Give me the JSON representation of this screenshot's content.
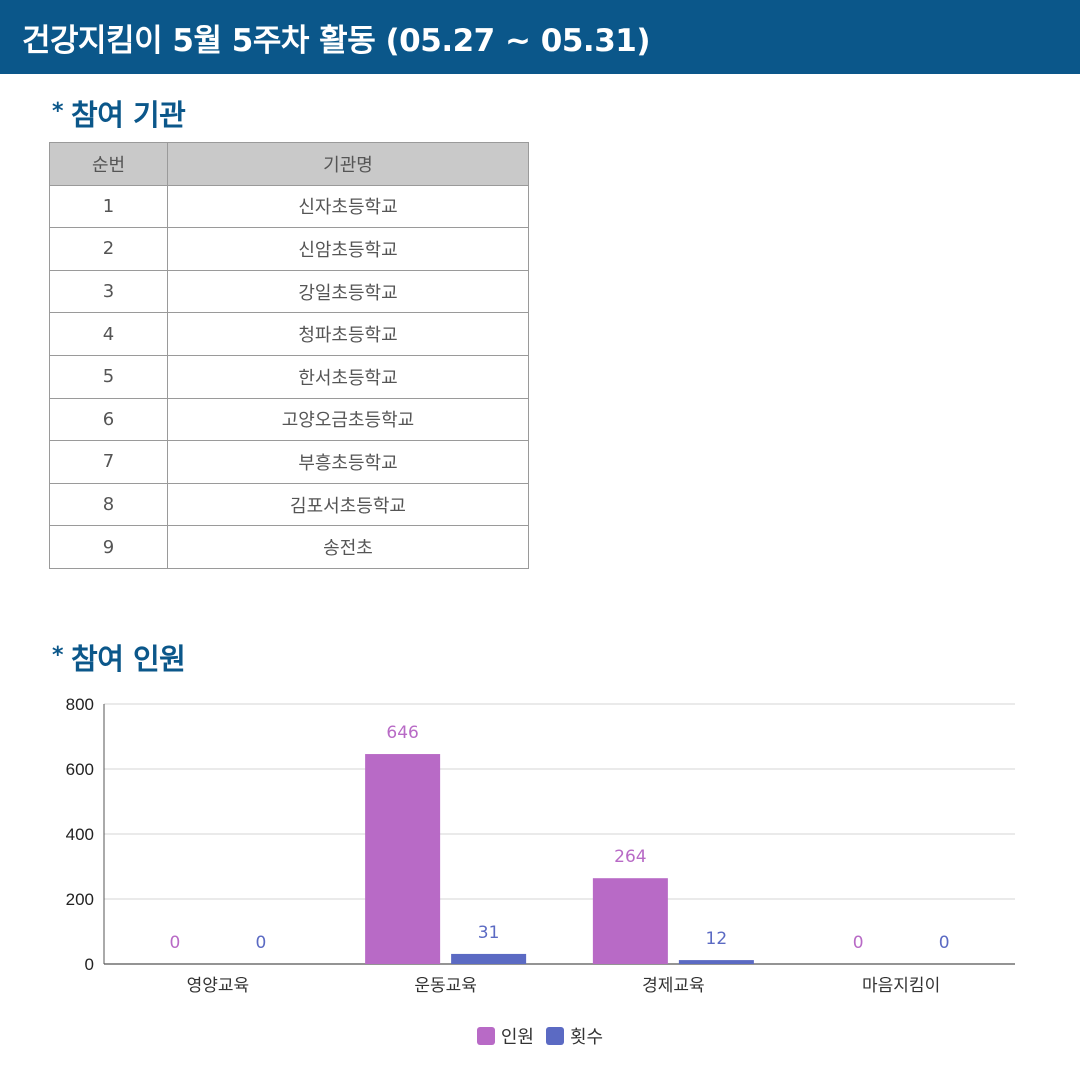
{
  "header": {
    "title": "건강지킴이 5월 5주차 활동 (05.27 ~ 05.31)"
  },
  "section_institutions": {
    "bullet": "*",
    "title": "참여 기관"
  },
  "table": {
    "headers": [
      "순번",
      "기관명"
    ],
    "rows": [
      [
        "1",
        "신자초등학교"
      ],
      [
        "2",
        "신암초등학교"
      ],
      [
        "3",
        "강일초등학교"
      ],
      [
        "4",
        "청파초등학교"
      ],
      [
        "5",
        "한서초등학교"
      ],
      [
        "6",
        "고양오금초등학교"
      ],
      [
        "7",
        "부흥초등학교"
      ],
      [
        "8",
        "김포서초등학교"
      ],
      [
        "9",
        "송전초"
      ]
    ]
  },
  "section_participants": {
    "bullet": "*",
    "title": "참여 인원"
  },
  "chart_data": {
    "type": "bar",
    "categories": [
      "영양교육",
      "운동교육",
      "경제교육",
      "마음지킴이"
    ],
    "series": [
      {
        "name": "인원",
        "values": [
          0,
          646,
          264,
          0
        ],
        "color": "#b86ac6"
      },
      {
        "name": "횟수",
        "values": [
          0,
          31,
          12,
          0
        ],
        "color": "#5b6ac3"
      }
    ],
    "ylim": [
      0,
      800
    ],
    "yticks": [
      0,
      200,
      400,
      600,
      800
    ],
    "grid": true,
    "legend_position": "bottom-center",
    "data_labels": true
  }
}
